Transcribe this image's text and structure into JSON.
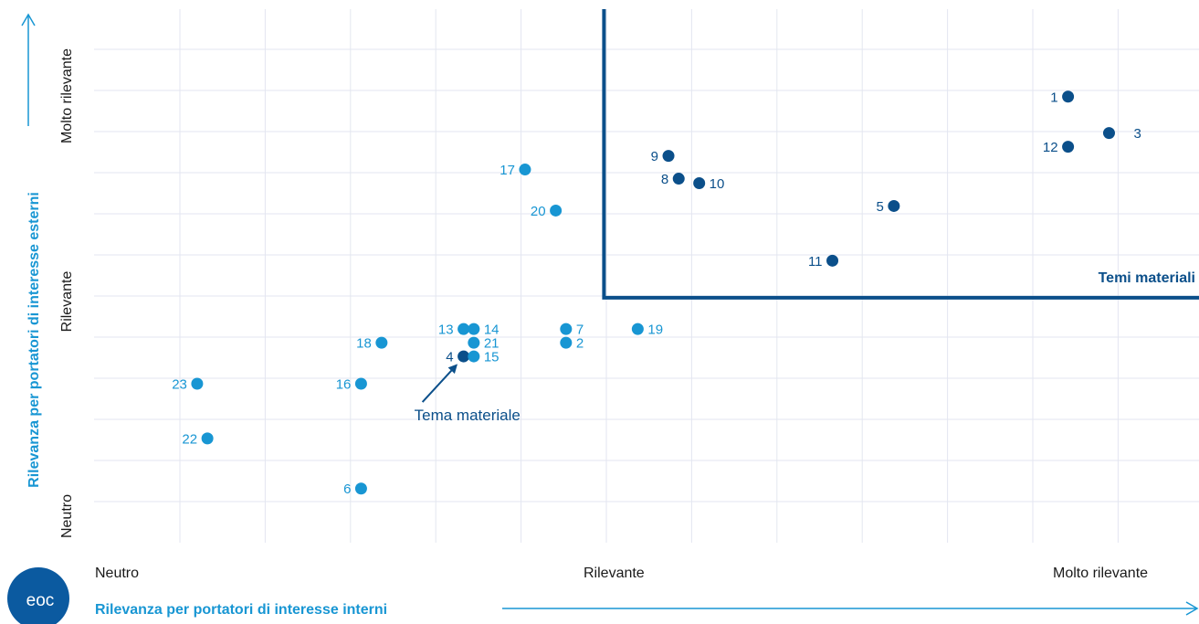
{
  "colors": {
    "material": "#0b4f8a",
    "other": "#1896d3",
    "grid": "#e3e6f0",
    "axis_title": "#1896d3",
    "frame": "#0b4f8a",
    "logo": "#0b5aa0"
  },
  "logo": {
    "text": "eoc"
  },
  "chart_data": {
    "type": "scatter",
    "xlabel": "Rilevanza per portatori di interesse interni",
    "ylabel": "Rilevanza per portatori di interesse esterni",
    "x_ticks": [
      {
        "label": "Neutro",
        "value": 0
      },
      {
        "label": "Rilevante",
        "value": 50
      },
      {
        "label": "Molto rilevante",
        "value": 100
      }
    ],
    "y_ticks": [
      {
        "label": "Neutro",
        "value": 0
      },
      {
        "label": "Rilevante",
        "value": 50
      },
      {
        "label": "Molto rilevante",
        "value": 100
      }
    ],
    "xlim": [
      0,
      100
    ],
    "ylim": [
      0,
      100
    ],
    "grid": true,
    "materiality_threshold": {
      "label": "Temi materiali",
      "x": 50,
      "y": 52
    },
    "annotation": {
      "text": "Tema materiale",
      "target_point": "4"
    },
    "series": [
      {
        "name": "Temi materiali",
        "color": "#0b4f8a",
        "points": [
          {
            "label": "1",
            "x": 95,
            "y": 96
          },
          {
            "label": "3",
            "x": 99,
            "y": 88
          },
          {
            "label": "12",
            "x": 95,
            "y": 85
          },
          {
            "label": "9",
            "x": 56,
            "y": 83
          },
          {
            "label": "8",
            "x": 57,
            "y": 78
          },
          {
            "label": "10",
            "x": 59,
            "y": 77
          },
          {
            "label": "5",
            "x": 78,
            "y": 72
          },
          {
            "label": "11",
            "x": 72,
            "y": 60
          },
          {
            "label": "4",
            "x": 36,
            "y": 39
          }
        ]
      },
      {
        "name": "",
        "color": "#1896d3",
        "points": [
          {
            "label": "17",
            "x": 42,
            "y": 80
          },
          {
            "label": "20",
            "x": 45,
            "y": 71
          },
          {
            "label": "13",
            "x": 36,
            "y": 45
          },
          {
            "label": "14",
            "x": 37,
            "y": 45
          },
          {
            "label": "7",
            "x": 46,
            "y": 45
          },
          {
            "label": "19",
            "x": 53,
            "y": 45
          },
          {
            "label": "21",
            "x": 37,
            "y": 42
          },
          {
            "label": "2",
            "x": 46,
            "y": 42
          },
          {
            "label": "18",
            "x": 28,
            "y": 42
          },
          {
            "label": "15",
            "x": 37,
            "y": 39
          },
          {
            "label": "23",
            "x": 10,
            "y": 33
          },
          {
            "label": "16",
            "x": 26,
            "y": 33
          },
          {
            "label": "22",
            "x": 11,
            "y": 21
          },
          {
            "label": "6",
            "x": 26,
            "y": 10
          }
        ]
      }
    ]
  }
}
